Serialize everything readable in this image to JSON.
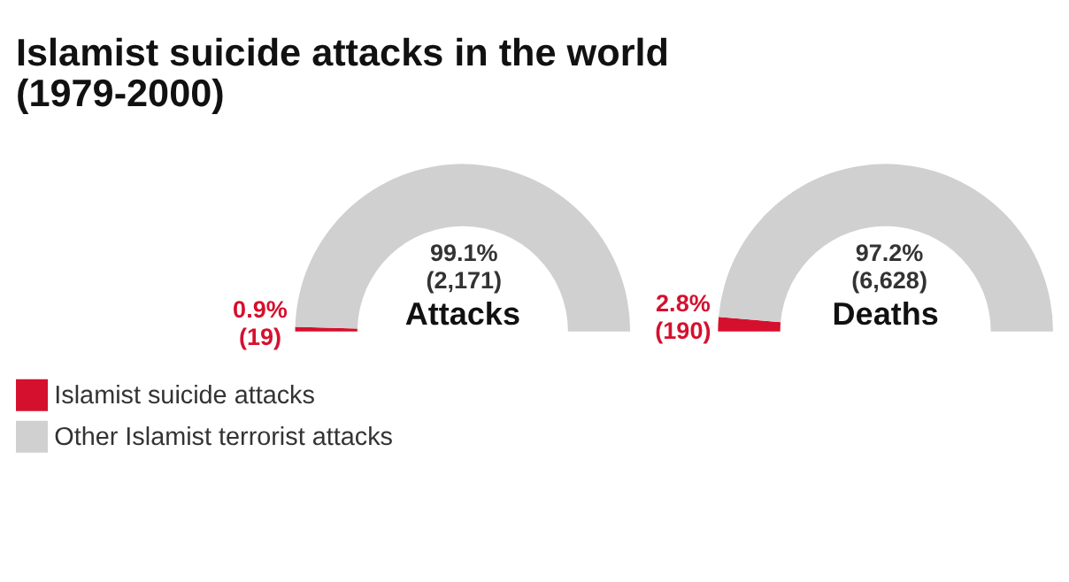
{
  "chart_data": [
    {
      "type": "other",
      "title": "Islamist suicide attacks in the world (1979-2000)"
    },
    {
      "type": "donut",
      "title": "Attacks",
      "categories": [
        "Islamist suicide attacks",
        "Other Islamist terrorist attacks"
      ],
      "values": [
        19,
        2171
      ],
      "colors": [
        "#d5102e",
        "#d0d0d0"
      ],
      "value_labels": [
        "0.9% (19)",
        "99.1% (2,171)"
      ],
      "legend": "bottom left"
    },
    {
      "type": "donut",
      "title": "Deaths",
      "values": [
        190,
        6628
      ],
      "colors": [
        "#d5102e",
        "#d0d0d0"
      ],
      "value_labels": [
        "2.8% (190)",
        "97.2% (6,628)"
      ]
    }
  ]
}
